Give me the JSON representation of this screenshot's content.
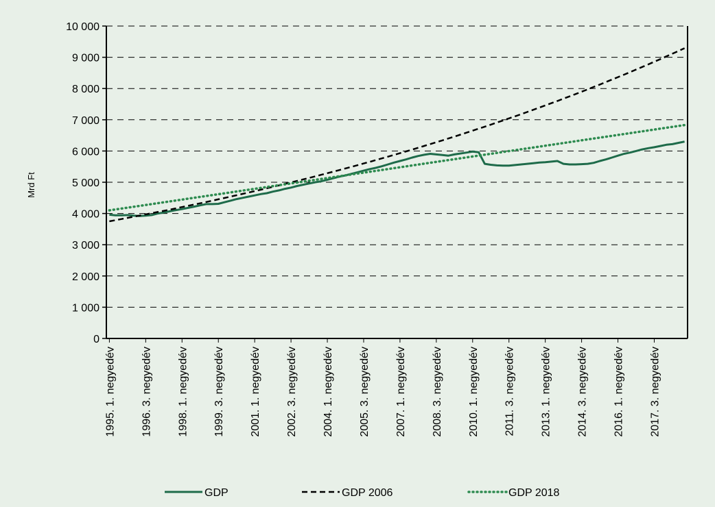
{
  "chart_data": {
    "type": "line",
    "title": "",
    "ylabel": "Mrd Ft",
    "xlabel": "",
    "ylim": [
      0,
      10000
    ],
    "yticks": [
      0,
      1000,
      2000,
      3000,
      4000,
      5000,
      6000,
      7000,
      8000,
      9000,
      10000
    ],
    "ytick_labels": [
      "0",
      "1 000",
      "2 000",
      "3 000",
      "4 000",
      "5 000",
      "6 000",
      "7 000",
      "8 000",
      "9 000",
      "10 000"
    ],
    "grid": "horizontal dashed",
    "legend_position": "bottom",
    "x_start": "1995. 1. negyedév",
    "x_end": "2018. 4. negyedév",
    "xtick_labels": [
      "1995. 1. negyedév",
      "1996. 3. negyedév",
      "1998. 1. negyedév",
      "1999. 3. negyedév",
      "2001. 1. negyedév",
      "2002. 3. negyedév",
      "2004. 1. negyedév",
      "2005. 3. negyedév",
      "2007. 1. negyedév",
      "2008. 3. negyedév",
      "2010. 1. negyedév",
      "2011. 3. negyedév",
      "2013. 1. negyedév",
      "2014. 3. negyedév",
      "2016. 1. negyedév",
      "2017. 3. negyedév"
    ],
    "colors": {
      "gdp": "#1e6b4a",
      "gdp2006": "#000000",
      "gdp2018": "#2e8b50",
      "background": "#e8f0e8"
    },
    "series": [
      {
        "name": "GDP",
        "style": "solid",
        "values": [
          3960,
          3940,
          3940,
          3950,
          3930,
          3920,
          3930,
          3950,
          4000,
          4030,
          4070,
          4110,
          4140,
          4180,
          4220,
          4260,
          4300,
          4300,
          4310,
          4360,
          4410,
          4460,
          4500,
          4540,
          4580,
          4620,
          4650,
          4700,
          4740,
          4790,
          4830,
          4880,
          4920,
          4960,
          5000,
          5030,
          5080,
          5130,
          5180,
          5220,
          5270,
          5320,
          5370,
          5420,
          5460,
          5510,
          5570,
          5630,
          5680,
          5730,
          5790,
          5840,
          5880,
          5910,
          5890,
          5870,
          5850,
          5890,
          5920,
          5950,
          5980,
          5960,
          5590,
          5560,
          5540,
          5530,
          5530,
          5550,
          5570,
          5590,
          5610,
          5630,
          5640,
          5660,
          5680,
          5590,
          5570,
          5570,
          5580,
          5590,
          5620,
          5680,
          5730,
          5790,
          5850,
          5910,
          5950,
          6000,
          6050,
          6090,
          6120,
          6160,
          6200,
          6220,
          6260,
          6300
        ]
      },
      {
        "name": "GDP 2006",
        "style": "dashed",
        "start": 3750,
        "end": 9290,
        "shape": "exponential"
      },
      {
        "name": "GDP 2018",
        "style": "dotted",
        "start": 4100,
        "end": 6830,
        "shape": "linear"
      }
    ]
  }
}
